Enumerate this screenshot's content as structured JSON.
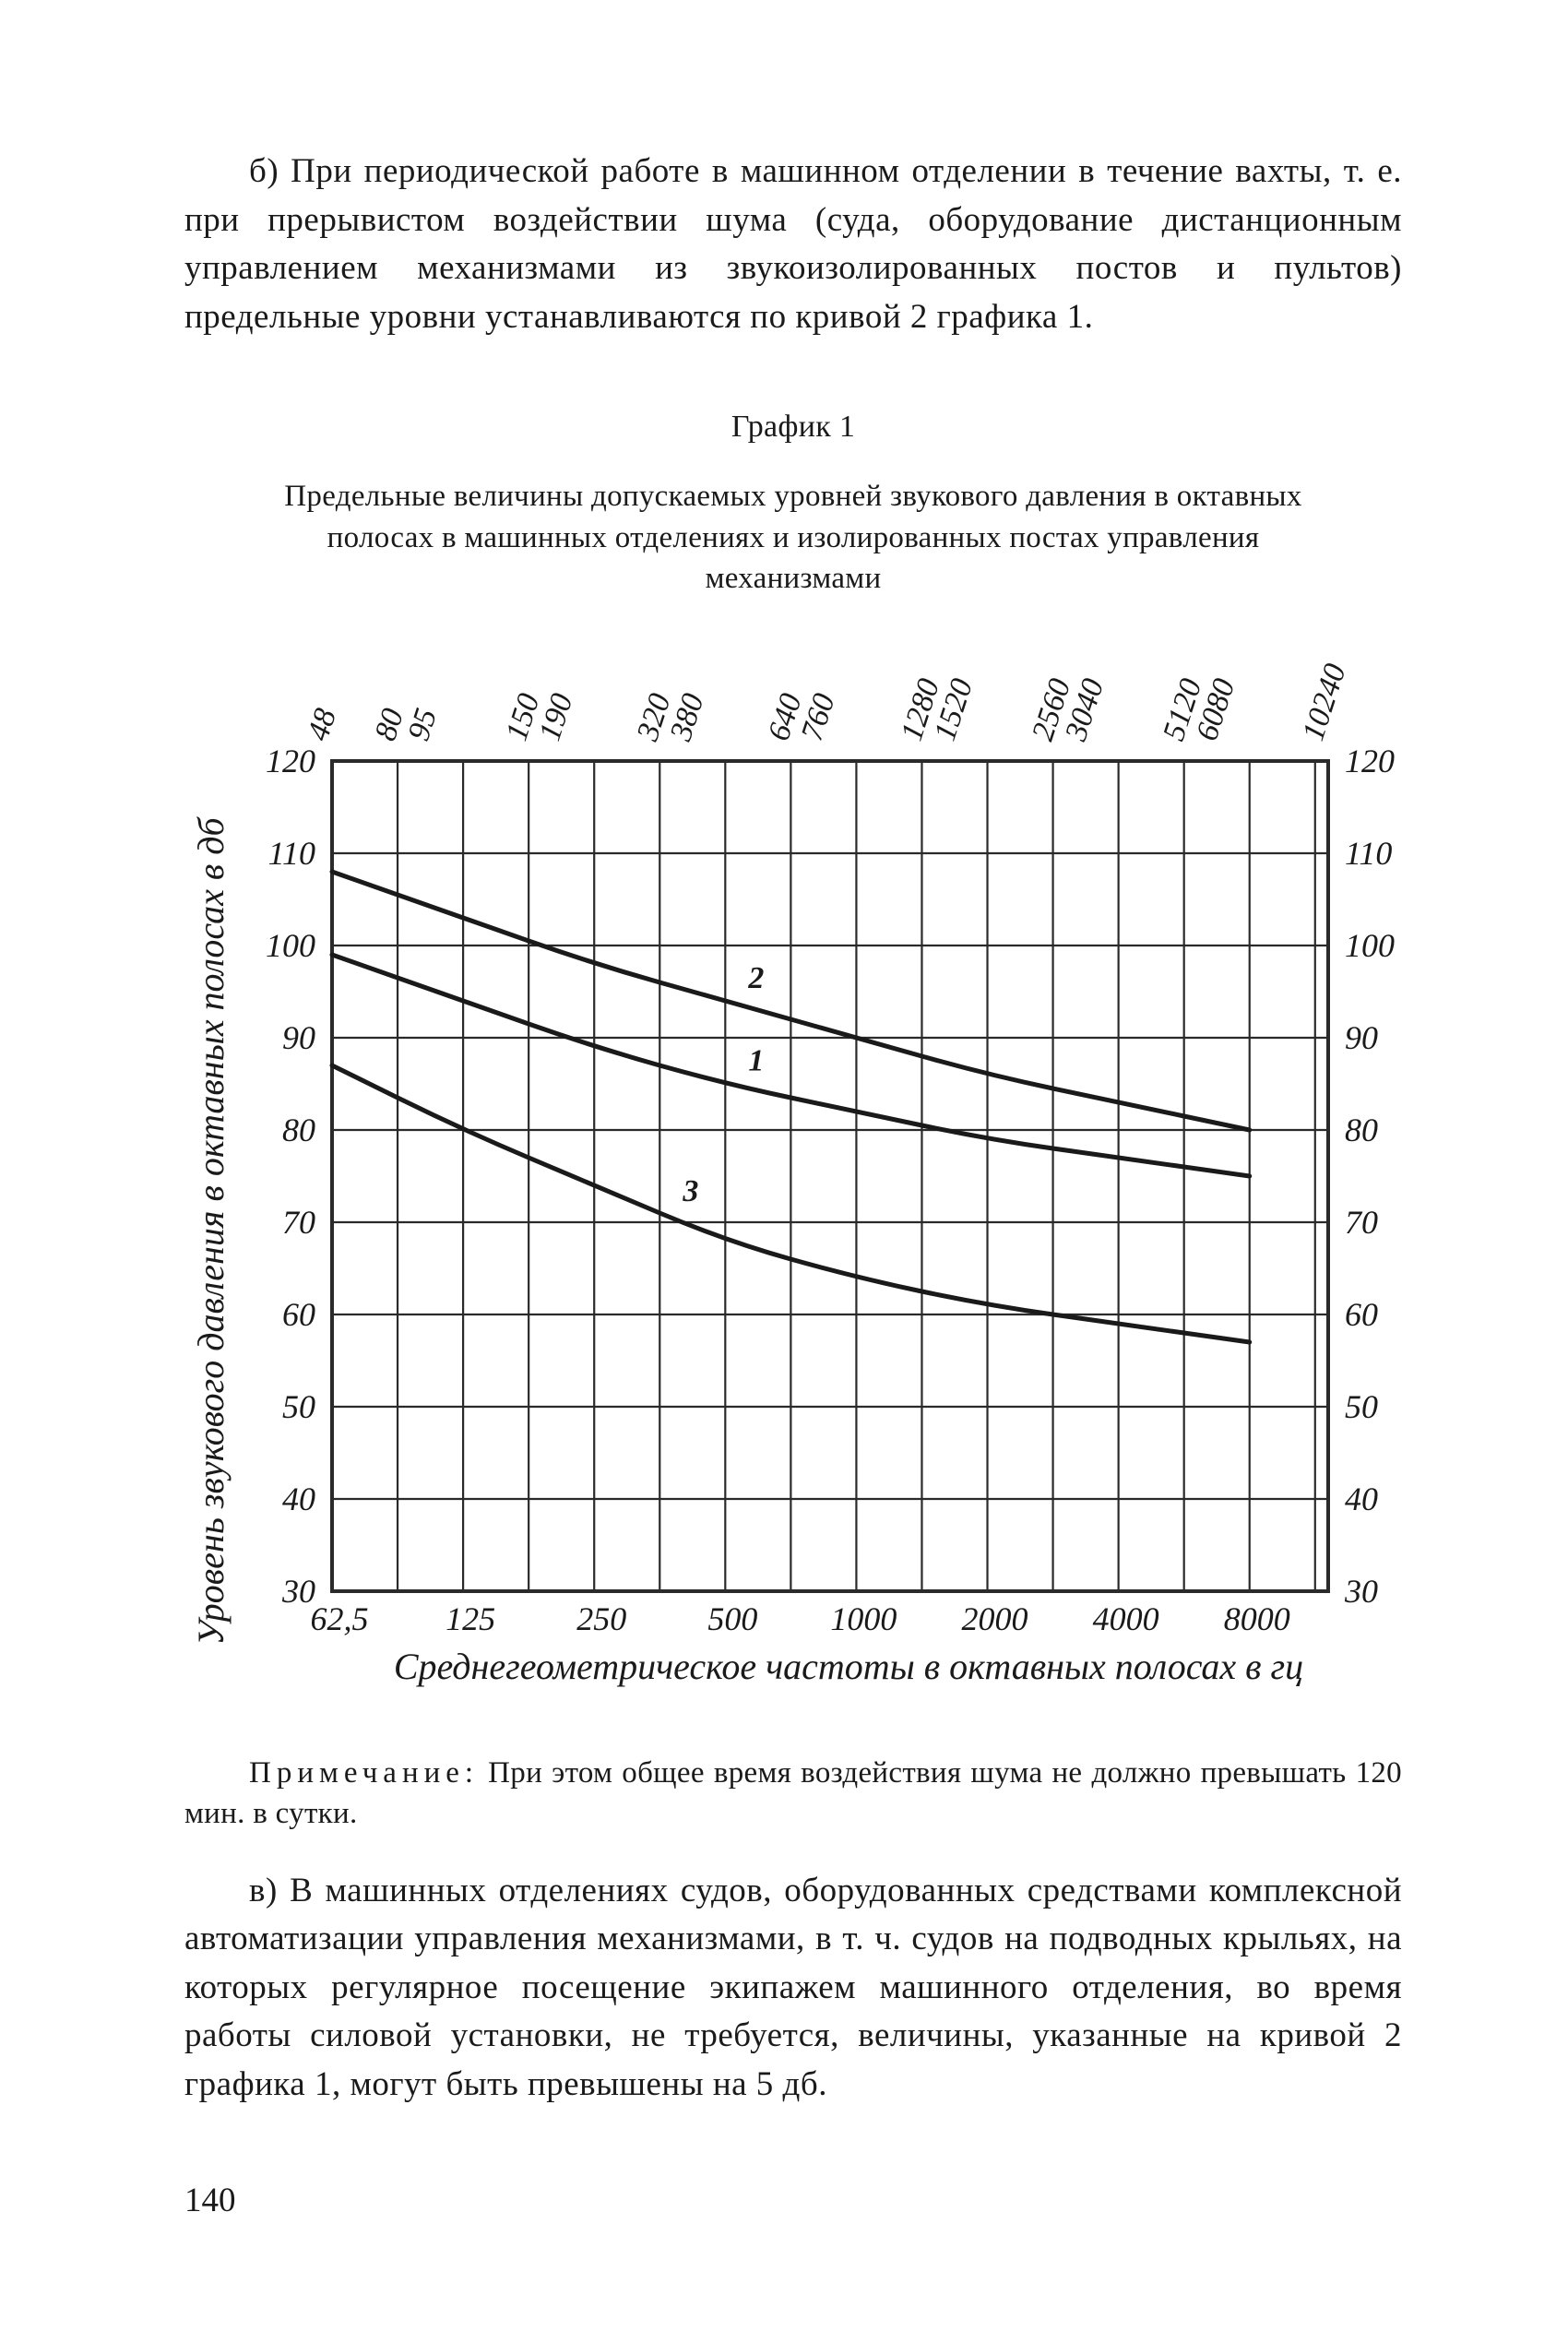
{
  "page_number": "140",
  "paragraphs": {
    "b": "б) При периодической работе в машинном отделении в течение вахты, т. е. при прерывистом воздействии шума (суда, оборудование дистанционным управлением механизмами из звукоизолированных постов и пультов) предельные уровни устанавливаются по кривой 2 графика 1.",
    "v": "в) В машинных отделениях судов, оборудованных средствами комплексной автоматизации управления механизмами, в т. ч. судов на подводных крыльях, на которых регулярное посещение экипажем машинного отделения, во время работы силовой установки, не требуется, величины, указанные на кривой 2 графика 1, могут быть превышены на 5 дб."
  },
  "figure": {
    "heading": "График 1",
    "caption": "Предельные величины допускаемых уровней звукового давления в октавных полосах в машинных отделениях и изолированных постах управления механизмами",
    "note_label": "Примечание:",
    "note_text": "При этом общее время воздействия шума не должно превышать 120 мин. в сутки."
  },
  "chart": {
    "type": "line",
    "background_color": "#ffffff",
    "grid_color": "#2a2a2a",
    "line_color": "#1a1a1a",
    "text_color": "#1a1a1a",
    "grid_stroke": 2.2,
    "outer_stroke": 4.0,
    "curve_stroke": 5.0,
    "y_axis": {
      "label": "Уровень звукового давления в октавных полосах в дб",
      "min": 30,
      "max": 120,
      "tick_step": 10,
      "ticks": [
        30,
        40,
        50,
        60,
        70,
        80,
        90,
        100,
        110,
        120
      ],
      "label_fontsize": 40,
      "tick_fontsize": 36
    },
    "x_axis": {
      "label": "Среднегеометрическое частоты в октавных полосах в гц",
      "positions": [
        0,
        1,
        2,
        3,
        4,
        5,
        6,
        7
      ],
      "tick_labels": [
        "62,5",
        "125",
        "250",
        "500",
        "1000",
        "2000",
        "4000",
        "8000"
      ],
      "band_edges": [
        "48",
        "80 95",
        "150 190",
        "320 380",
        "640 760",
        "1280 1520",
        "2560 3040",
        "5120 6080",
        "10240"
      ],
      "label_fontsize": 40,
      "tick_fontsize": 36,
      "top_fontsize": 34
    },
    "series": [
      {
        "name": "2",
        "label_at": 3.05,
        "data": [
          [
            0,
            108
          ],
          [
            1,
            103
          ],
          [
            2,
            98
          ],
          [
            3,
            94
          ],
          [
            4,
            90
          ],
          [
            5,
            86
          ],
          [
            6,
            83
          ],
          [
            7,
            80
          ]
        ]
      },
      {
        "name": "1",
        "label_at": 3.05,
        "data": [
          [
            0,
            99
          ],
          [
            1,
            94
          ],
          [
            2,
            89
          ],
          [
            3,
            85
          ],
          [
            4,
            82
          ],
          [
            5,
            79
          ],
          [
            6,
            77
          ],
          [
            7,
            75
          ]
        ]
      },
      {
        "name": "3",
        "label_at": 2.55,
        "data": [
          [
            0,
            87
          ],
          [
            1,
            80
          ],
          [
            2,
            74
          ],
          [
            3,
            68
          ],
          [
            4,
            64
          ],
          [
            5,
            61
          ],
          [
            6,
            59
          ],
          [
            7,
            57
          ]
        ]
      }
    ]
  }
}
